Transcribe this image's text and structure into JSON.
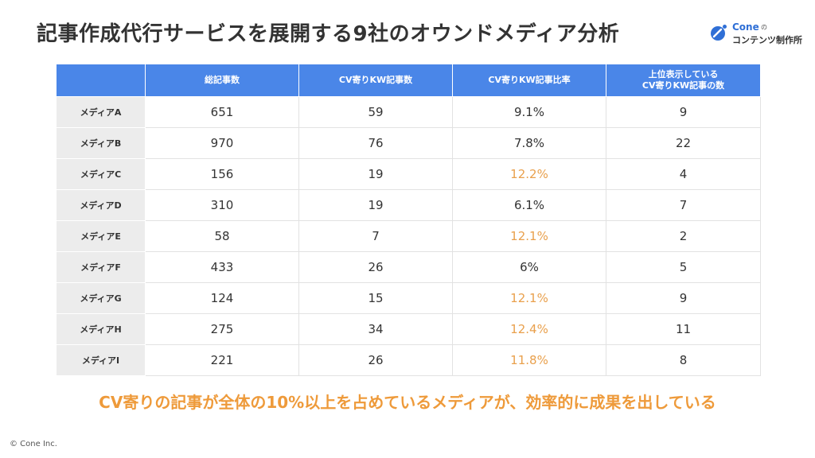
{
  "title": "記事作成代行サービスを展開する9社のオウンドメディア分析",
  "logo": {
    "brand": "Cone",
    "suffix": "の",
    "subtitle": "コンテンツ制作所",
    "icon": "cone-logo-icon"
  },
  "table": {
    "columns": [
      "総記事数",
      "CV寄りKW記事数",
      "CV寄りKW記事比率",
      [
        "上位表示している",
        "CV寄りKW記事の数"
      ]
    ],
    "rows": [
      {
        "label": "メディアA",
        "values": [
          "651",
          "59",
          "9.1%",
          "9"
        ],
        "highlight": false
      },
      {
        "label": "メディアB",
        "values": [
          "970",
          "76",
          "7.8%",
          "22"
        ],
        "highlight": false
      },
      {
        "label": "メディアC",
        "values": [
          "156",
          "19",
          "12.2%",
          "4"
        ],
        "highlight": true
      },
      {
        "label": "メディアD",
        "values": [
          "310",
          "19",
          "6.1%",
          "7"
        ],
        "highlight": false
      },
      {
        "label": "メディアE",
        "values": [
          "58",
          "7",
          "12.1%",
          "2"
        ],
        "highlight": true
      },
      {
        "label": "メディアF",
        "values": [
          "433",
          "26",
          "6%",
          "5"
        ],
        "highlight": false
      },
      {
        "label": "メディアG",
        "values": [
          "124",
          "15",
          "12.1%",
          "9"
        ],
        "highlight": true
      },
      {
        "label": "メディアH",
        "values": [
          "275",
          "34",
          "12.4%",
          "11"
        ],
        "highlight": true
      },
      {
        "label": "メディアI",
        "values": [
          "221",
          "26",
          "11.8%",
          "8"
        ],
        "highlight": true
      }
    ]
  },
  "headline": "CV寄りの記事が全体の10%以上を占めているメディアが、効率的に成果を出している",
  "copyright": "© Cone Inc.",
  "colors": {
    "header_bg": "#4a86e8",
    "row_label_bg": "#ececec",
    "highlight": "#e9a04c",
    "headline": "#ee9a3a",
    "brand": "#2f6fd6"
  }
}
